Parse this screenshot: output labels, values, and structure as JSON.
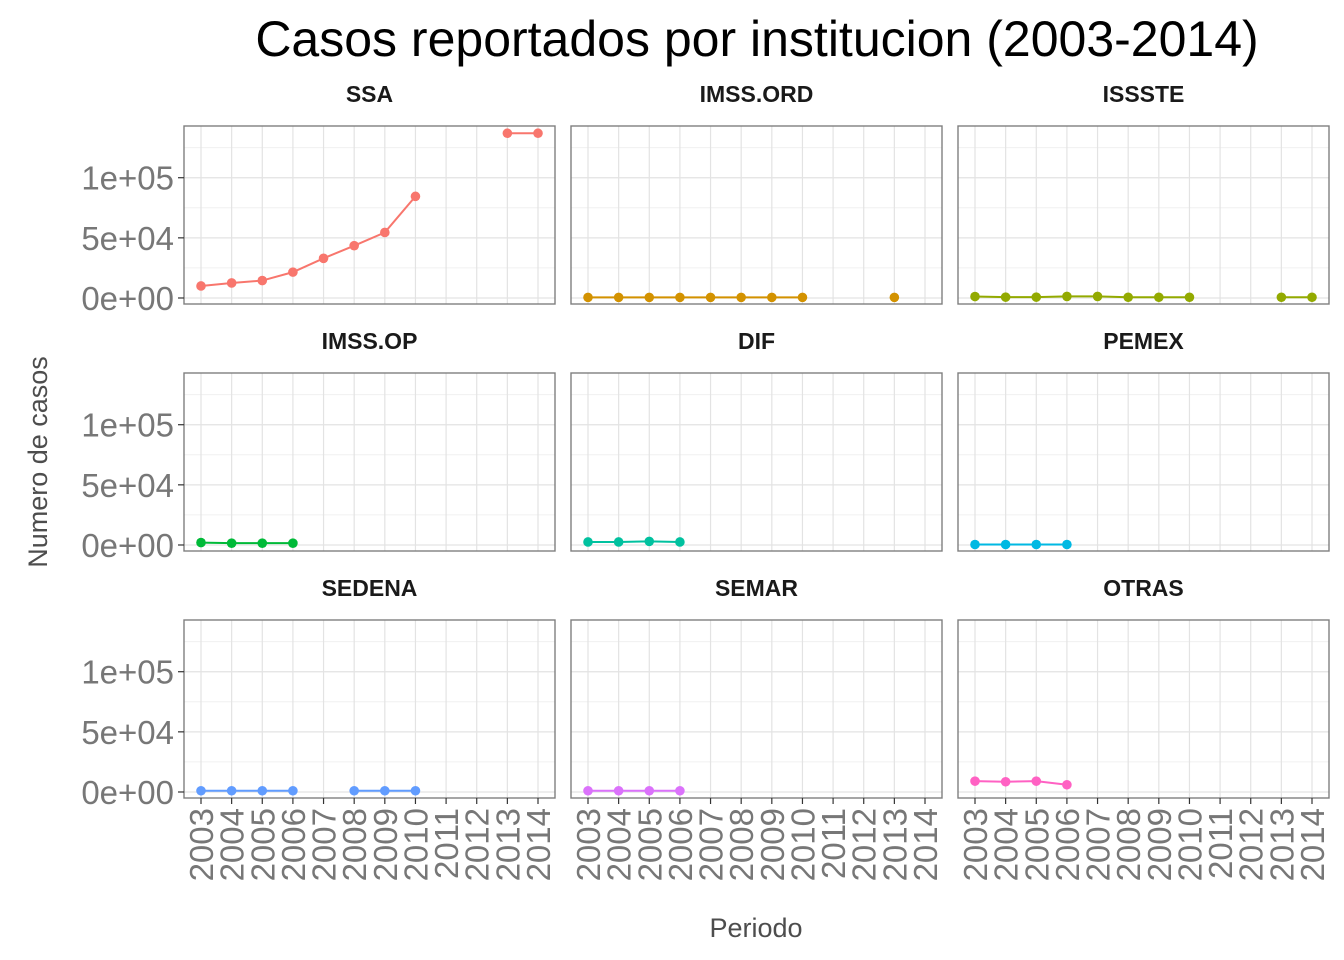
{
  "chart_data": {
    "type": "line",
    "title": "Casos reportados por institucion (2003-2014)",
    "xlabel": "Periodo",
    "ylabel": "Numero de casos",
    "x": [
      2003,
      2004,
      2005,
      2006,
      2007,
      2008,
      2009,
      2010,
      2011,
      2012,
      2013,
      2014
    ],
    "ylim": [
      -5000,
      143000
    ],
    "yticks": [
      0,
      50000,
      100000
    ],
    "ytick_labels": [
      "0e+00",
      "5e+04",
      "1e+05"
    ],
    "grid": true,
    "legend": "none",
    "panels": [
      {
        "name": "SSA",
        "color": "#F8766D",
        "values": [
          10000,
          12500,
          14500,
          21500,
          33000,
          43500,
          54500,
          84500,
          null,
          null,
          137000,
          137000
        ]
      },
      {
        "name": "IMSS.ORD",
        "color": "#D39200",
        "values": [
          500,
          500,
          500,
          500,
          500,
          500,
          500,
          500,
          null,
          null,
          500,
          null
        ]
      },
      {
        "name": "ISSSTE",
        "color": "#93AA00",
        "values": [
          1200,
          700,
          700,
          1300,
          1300,
          600,
          600,
          600,
          null,
          null,
          600,
          600
        ]
      },
      {
        "name": "IMSS.OP",
        "color": "#00BA38",
        "values": [
          2000,
          1500,
          1500,
          1500,
          null,
          null,
          null,
          null,
          null,
          null,
          null,
          null
        ]
      },
      {
        "name": "DIF",
        "color": "#00C19F",
        "values": [
          2500,
          2500,
          3000,
          2500,
          null,
          null,
          null,
          null,
          null,
          null,
          null,
          null
        ]
      },
      {
        "name": "PEMEX",
        "color": "#00B9E3",
        "values": [
          400,
          400,
          400,
          400,
          null,
          null,
          null,
          null,
          null,
          null,
          null,
          null
        ]
      },
      {
        "name": "SEDENA",
        "color": "#619CFF",
        "values": [
          1000,
          1000,
          1000,
          1000,
          null,
          1000,
          1000,
          1000,
          null,
          null,
          null,
          null
        ]
      },
      {
        "name": "SEMAR",
        "color": "#DB72FB",
        "values": [
          1000,
          1000,
          1000,
          1000,
          null,
          null,
          null,
          null,
          null,
          null,
          null,
          null
        ]
      },
      {
        "name": "OTRAS",
        "color": "#FF61C3",
        "values": [
          9000,
          8500,
          9000,
          6000,
          null,
          null,
          null,
          null,
          null,
          null,
          null,
          null
        ]
      }
    ]
  }
}
